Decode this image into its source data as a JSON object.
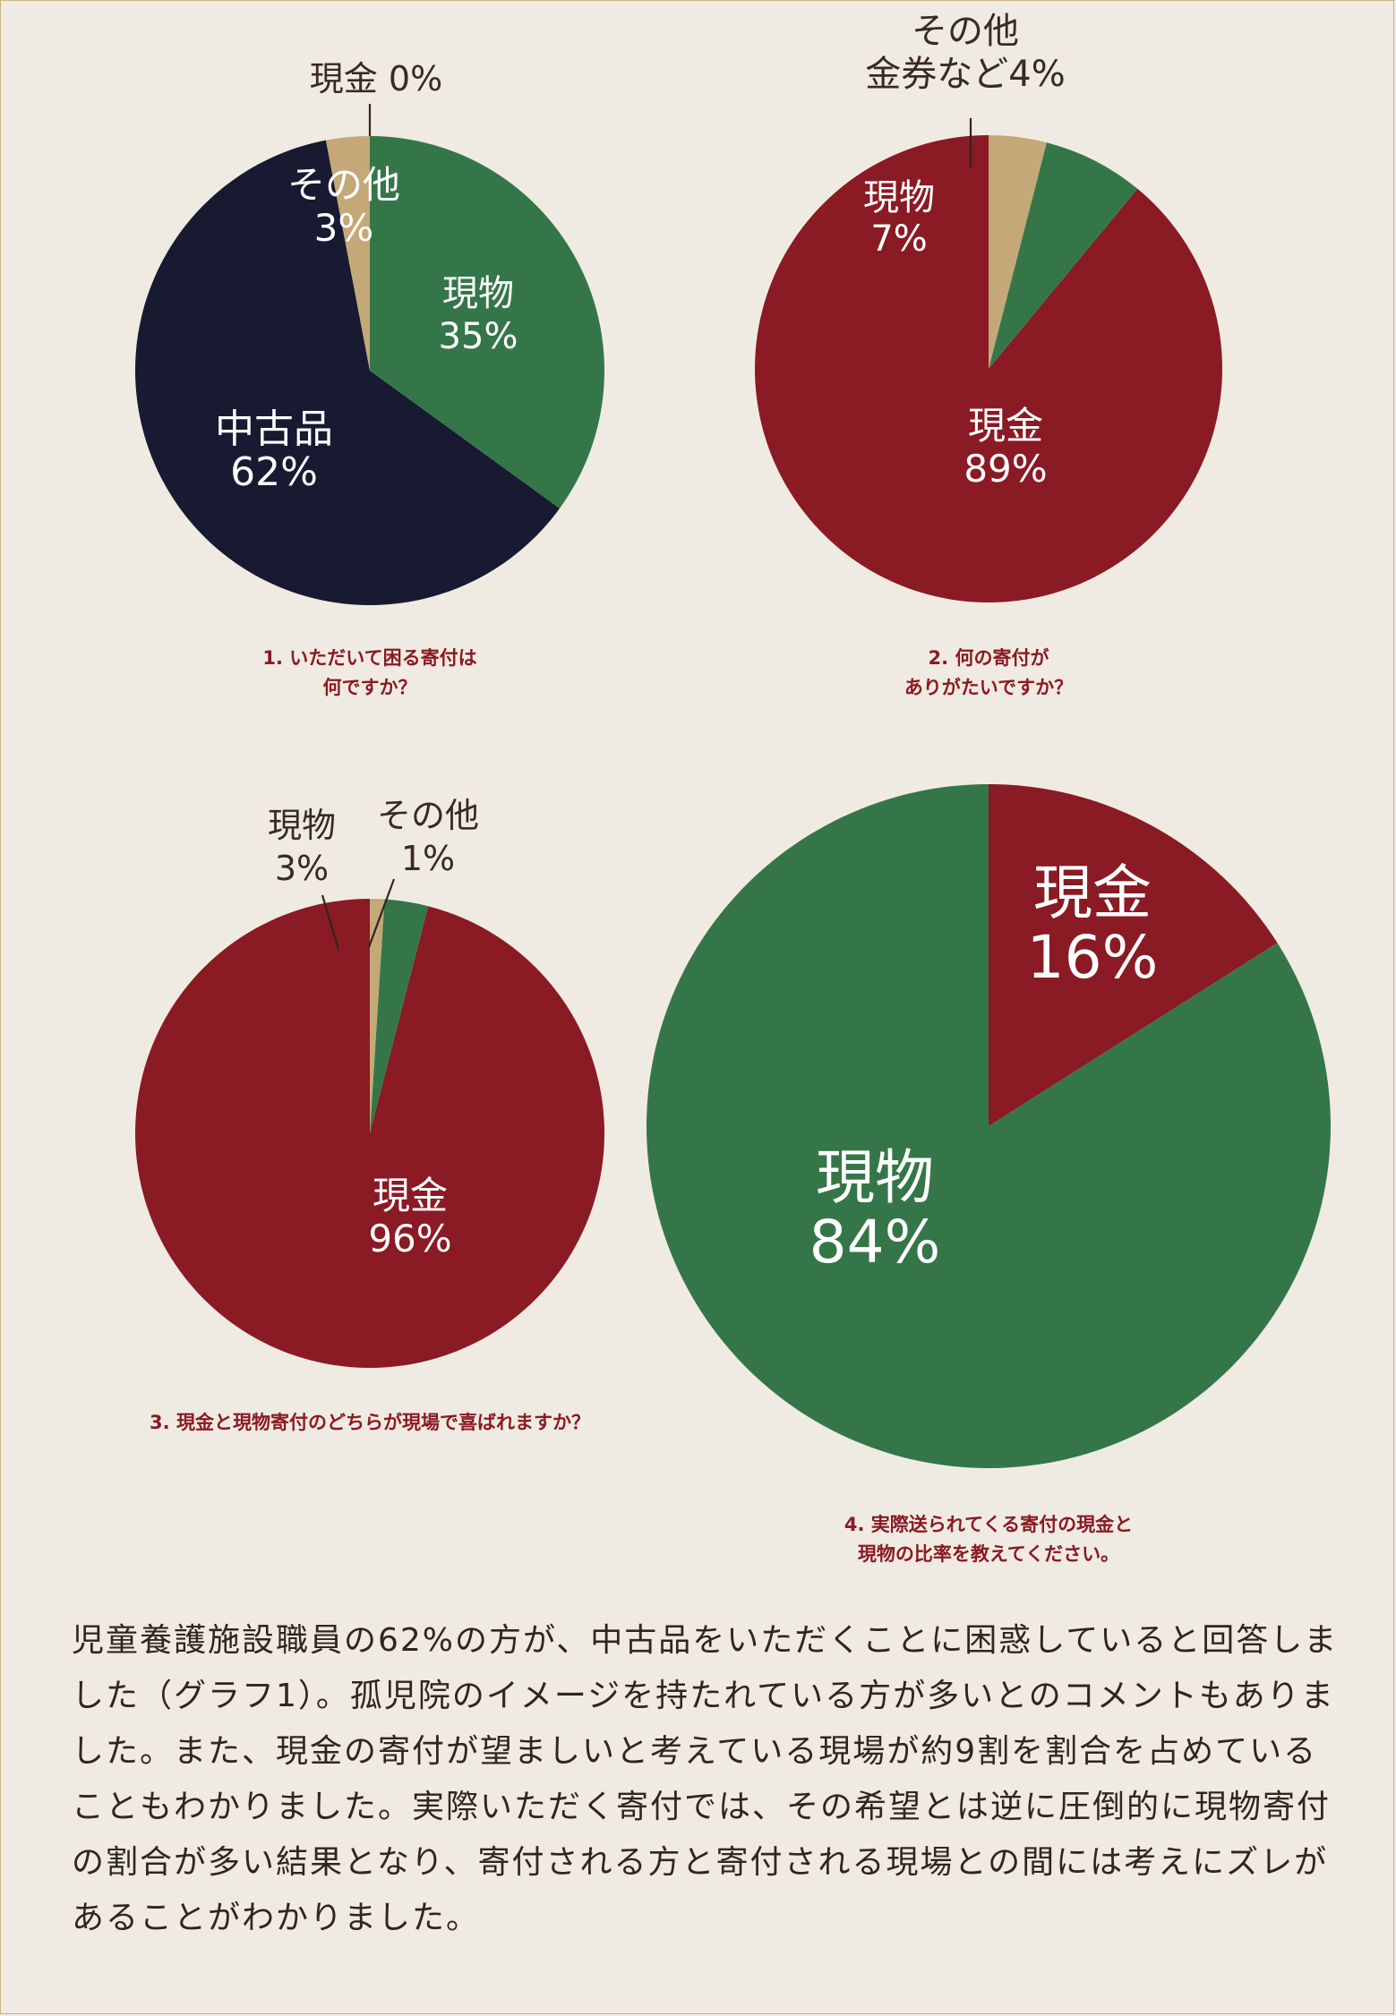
{
  "colors": {
    "background": "#f0ebe2",
    "frame": "#c9b583",
    "cash": "#8a1a24",
    "goods": "#357649",
    "used": "#171a30",
    "other": "#c4a877",
    "caption": "#8a1a24",
    "text": "#2e2622"
  },
  "chart_data": [
    {
      "type": "pie",
      "title": "1. いただいて困る寄付は何ですか？",
      "title_lines": [
        "1. いただいて困る寄付は",
        "何ですか？"
      ],
      "slices": [
        {
          "name": "現物",
          "value": 35,
          "label": "35%",
          "color": "#357649"
        },
        {
          "name": "中古品",
          "value": 62,
          "label": "62%",
          "color": "#171a30"
        },
        {
          "name": "その他",
          "value": 3,
          "label": "3%",
          "color": "#c4a877"
        },
        {
          "name": "現金",
          "value": 0,
          "label": "0%",
          "color": "#8a1a24"
        }
      ]
    },
    {
      "type": "pie",
      "title": "2. 何の寄付がありがたいですか？",
      "title_lines": [
        "2. 何の寄付が",
        "ありがたいですか？"
      ],
      "slices": [
        {
          "name": "現金",
          "value": 89,
          "label": "89%",
          "color": "#8a1a24"
        },
        {
          "name": "現物",
          "value": 7,
          "label": "7%",
          "color": "#357649"
        },
        {
          "name": "その他金券など",
          "value": 4,
          "label": "金券など4%",
          "name_lines": [
            "その他",
            "金券など4%"
          ],
          "color": "#c4a877"
        }
      ]
    },
    {
      "type": "pie",
      "title": "3. 現金と現物寄付のどちらが現場で喜ばれますか？",
      "title_lines": [
        "3. 現金と現物寄付のどちらが現場で喜ばれますか？"
      ],
      "slices": [
        {
          "name": "現金",
          "value": 96,
          "label": "96%",
          "color": "#8a1a24"
        },
        {
          "name": "現物",
          "value": 3,
          "label": "3%",
          "color": "#357649"
        },
        {
          "name": "その他",
          "value": 1,
          "label": "1%",
          "color": "#c4a877"
        }
      ]
    },
    {
      "type": "pie",
      "title": "4. 実際送られてくる寄付の現金と現物の比率を教えてください。",
      "title_lines": [
        "4. 実際送られてくる寄付の現金と",
        "現物の比率を教えてください。"
      ],
      "slices": [
        {
          "name": "現金",
          "value": 16,
          "label": "16%",
          "color": "#8a1a24"
        },
        {
          "name": "現物",
          "value": 84,
          "label": "84%",
          "color": "#357649"
        }
      ]
    }
  ],
  "summary": {
    "text": "児童養護施設職員の62%の方が、中古品をいただくことに困惑していると回答しました（グラフ1）。孤児院のイメージを持たれている方が多いとのコメントもありました。また、現金の寄付が望ましいと考えている現場が約9割を割合を占めていることもわかりました。実際いただく寄付では、その希望とは逆に圧倒的に現物寄付の割合が多い結果となり、寄付される方と寄付される現場との間には考えにズレがあることがわかりました。"
  }
}
